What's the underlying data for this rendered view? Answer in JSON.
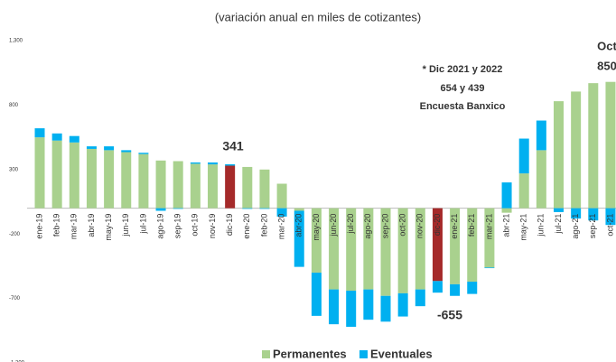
{
  "chart_data": {
    "type": "stacked_bar",
    "title": "(variación anual en miles de cotizantes)",
    "categories": [
      "ene-19",
      "feb-19",
      "mar-19",
      "abr-19",
      "may-19",
      "jun-19",
      "jul-19",
      "ago-19",
      "sep-19",
      "oct-19",
      "nov-19",
      "dic-19",
      "ene-20",
      "feb-20",
      "mar-20",
      "abr-20",
      "may-20",
      "jun-20",
      "jul-20",
      "ago-20",
      "sep-20",
      "oct-20",
      "nov-20",
      "dic-20",
      "ene-21",
      "feb-21",
      "mar-21",
      "abr-21",
      "may-21",
      "jun-21",
      "jul-21",
      "ago-21",
      "sep-21",
      "oct-21"
    ],
    "series": [
      {
        "name": "Permanentes",
        "color": "#a9d18e",
        "colors": [
          "#a9d18e",
          "#a9d18e",
          "#a9d18e",
          "#a9d18e",
          "#a9d18e",
          "#a9d18e",
          "#a9d18e",
          "#a9d18e",
          "#a9d18e",
          "#a9d18e",
          "#a9d18e",
          "#a52a2a",
          "#a9d18e",
          "#a9d18e",
          "#a9d18e",
          "#a9d18e",
          "#a9d18e",
          "#a9d18e",
          "#a9d18e",
          "#a9d18e",
          "#a9d18e",
          "#a9d18e",
          "#a9d18e",
          "#a52a2a",
          "#a9d18e",
          "#a9d18e",
          "#a9d18e",
          "#a9d18e",
          "#a9d18e",
          "#a9d18e",
          "#a9d18e",
          "#a9d18e",
          "#a9d18e",
          "#a9d18e"
        ],
        "values": [
          550,
          525,
          510,
          460,
          450,
          435,
          420,
          370,
          365,
          345,
          340,
          330,
          320,
          300,
          190,
          -20,
          -500,
          -630,
          -640,
          -630,
          -680,
          -660,
          -630,
          -565,
          -590,
          -570,
          -460,
          -35,
          270,
          450,
          830,
          905,
          970,
          980
        ]
      },
      {
        "name": "Eventuales",
        "color": "#00b0f0",
        "values": [
          70,
          55,
          50,
          20,
          30,
          15,
          10,
          -20,
          -5,
          10,
          15,
          11,
          -5,
          -5,
          -65,
          -435,
          -335,
          -270,
          -280,
          -235,
          -200,
          -180,
          -130,
          -90,
          -90,
          -95,
          -5,
          200,
          270,
          230,
          -30,
          -80,
          -95,
          -130
        ]
      }
    ],
    "ylim": [
      -1200,
      1300
    ],
    "yticks": [
      {
        "value": -1200,
        "label": "-1,200"
      },
      -700,
      -200,
      300,
      800,
      {
        "value": 1300,
        "label": "1,300"
      }
    ],
    "annotations": [
      {
        "text": "341",
        "color": "#8b1a1a"
      },
      {
        "text": "-655",
        "color": "#8b1a1a"
      },
      {
        "text": "* Dic 2021 y 2022",
        "color": "#c55a11"
      },
      {
        "text": "654 y 439",
        "color": "#c55a11"
      },
      {
        "text": "Encuesta Banxico",
        "color": "#c55a11"
      },
      {
        "text": "Oct",
        "color": "#00a000"
      },
      {
        "text": "850",
        "color": "#00a000"
      }
    ]
  }
}
